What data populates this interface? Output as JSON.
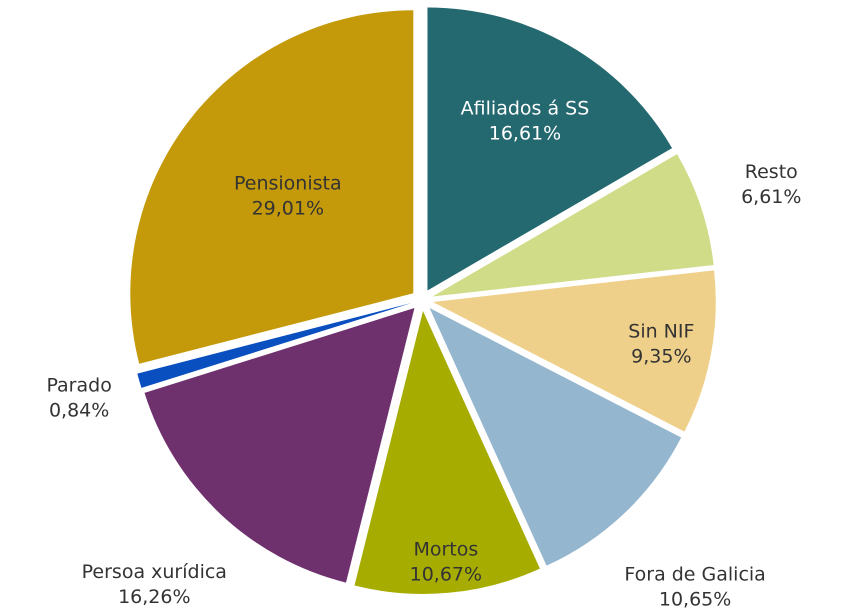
{
  "chart_data": {
    "type": "pie",
    "categories": [
      "Afiliados á SS",
      "Resto",
      "Sin NIF",
      "Fora de Galicia",
      "Mortos",
      "Persoa xurídica",
      "Parado",
      "Pensionista"
    ],
    "values": [
      16.61,
      6.61,
      9.35,
      10.65,
      10.67,
      16.26,
      0.84,
      29.01
    ],
    "value_labels": [
      "16,61%",
      "6,61%",
      "9,35%",
      "10,65%",
      "10,67%",
      "16,26%",
      "0,84%",
      "29,01%"
    ],
    "colors": [
      "#246870",
      "#d0dc88",
      "#efd08a",
      "#95b6cf",
      "#a6ad00",
      "#6e316e",
      "#0a4fbf",
      "#c49a0a"
    ]
  }
}
